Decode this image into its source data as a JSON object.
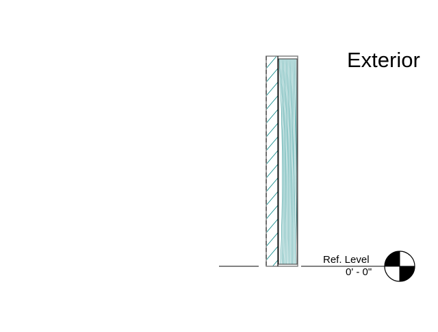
{
  "labels": {
    "side": "Exterior",
    "level_name": "Ref. Level",
    "level_elevation": "0' - 0\""
  },
  "colors": {
    "hatch": "#008080",
    "wall_outline": "#808080",
    "line": "#000000"
  },
  "layers": [
    {
      "name": "dashed-insulation-layer",
      "pattern": "diagonal-hatch",
      "outline": "dashed"
    },
    {
      "name": "wood-grain-layer",
      "pattern": "curved-grain",
      "outline": "solid"
    }
  ]
}
